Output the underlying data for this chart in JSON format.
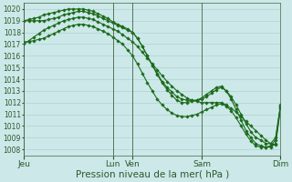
{
  "bg_color": "#cce8e8",
  "grid_color": "#aacccc",
  "line_color": "#1a6b1a",
  "marker_color": "#1a6b1a",
  "xlabel": "Pression niveau de la mer( hPa )",
  "xlabel_fontsize": 7.5,
  "ylim": [
    1007.5,
    1020.5
  ],
  "ytick_labels": [
    "1008",
    "1009",
    "1010",
    "1011",
    "1012",
    "1013",
    "1014",
    "1015",
    "1016",
    "1017",
    "1018",
    "1019",
    "1020"
  ],
  "ytick_vals": [
    1008,
    1009,
    1010,
    1011,
    1012,
    1013,
    1014,
    1015,
    1016,
    1017,
    1018,
    1019,
    1020
  ],
  "xtick_labels": [
    "Jeu",
    "Lun",
    "Ven",
    "Sam",
    "Dim"
  ],
  "xtick_positions": [
    0,
    18,
    22,
    36,
    52
  ],
  "vline_positions": [
    0,
    18,
    22,
    36,
    52
  ],
  "n_points": 53,
  "series1": [
    1017.0,
    1017.3,
    1017.6,
    1017.9,
    1018.2,
    1018.4,
    1018.6,
    1018.8,
    1019.0,
    1019.1,
    1019.2,
    1019.3,
    1019.3,
    1019.2,
    1019.1,
    1018.9,
    1018.7,
    1018.5,
    1018.3,
    1018.1,
    1017.8,
    1017.5,
    1017.2,
    1016.8,
    1016.3,
    1015.8,
    1015.3,
    1014.8,
    1014.3,
    1013.8,
    1013.4,
    1013.0,
    1012.7,
    1012.4,
    1012.2,
    1012.1,
    1012.0,
    1012.0,
    1012.0,
    1012.0,
    1012.0,
    1011.8,
    1011.5,
    1011.2,
    1010.8,
    1010.4,
    1010.0,
    1009.6,
    1009.2,
    1008.8,
    1008.5,
    1008.4,
    1011.5
  ],
  "series2": [
    1019.0,
    1019.1,
    1019.2,
    1019.3,
    1019.5,
    1019.6,
    1019.7,
    1019.8,
    1019.9,
    1020.0,
    1020.0,
    1020.0,
    1020.0,
    1019.9,
    1019.8,
    1019.6,
    1019.4,
    1019.2,
    1018.9,
    1018.7,
    1018.5,
    1018.3,
    1018.0,
    1017.5,
    1016.8,
    1016.0,
    1015.2,
    1014.5,
    1013.8,
    1013.3,
    1012.9,
    1012.5,
    1012.3,
    1012.2,
    1012.2,
    1012.2,
    1012.3,
    1012.5,
    1012.8,
    1013.1,
    1013.3,
    1013.0,
    1012.5,
    1011.8,
    1011.0,
    1010.2,
    1009.5,
    1009.0,
    1008.8,
    1008.5,
    1008.5,
    1009.0,
    1011.8
  ],
  "series3": [
    1019.0,
    1019.0,
    1019.0,
    1019.0,
    1019.0,
    1019.1,
    1019.2,
    1019.3,
    1019.5,
    1019.6,
    1019.7,
    1019.8,
    1019.8,
    1019.7,
    1019.6,
    1019.4,
    1019.2,
    1019.0,
    1018.8,
    1018.6,
    1018.4,
    1018.2,
    1018.0,
    1017.5,
    1016.8,
    1016.0,
    1015.2,
    1014.4,
    1013.7,
    1013.1,
    1012.6,
    1012.2,
    1012.0,
    1012.0,
    1012.1,
    1012.2,
    1012.4,
    1012.7,
    1013.0,
    1013.3,
    1013.4,
    1013.0,
    1012.3,
    1011.4,
    1010.5,
    1009.6,
    1009.0,
    1008.5,
    1008.3,
    1008.2,
    1008.2,
    1008.5,
    1011.7
  ],
  "series4": [
    1017.2,
    1017.2,
    1017.3,
    1017.4,
    1017.5,
    1017.7,
    1017.9,
    1018.1,
    1018.3,
    1018.5,
    1018.6,
    1018.7,
    1018.7,
    1018.6,
    1018.5,
    1018.3,
    1018.1,
    1017.9,
    1017.6,
    1017.3,
    1017.0,
    1016.5,
    1016.0,
    1015.3,
    1014.5,
    1013.7,
    1013.0,
    1012.3,
    1011.8,
    1011.4,
    1011.1,
    1010.9,
    1010.8,
    1010.8,
    1010.9,
    1011.0,
    1011.2,
    1011.4,
    1011.6,
    1011.8,
    1011.9,
    1011.7,
    1011.3,
    1010.7,
    1010.0,
    1009.3,
    1008.7,
    1008.3,
    1008.2,
    1008.2,
    1008.3,
    1008.8,
    1011.7
  ]
}
